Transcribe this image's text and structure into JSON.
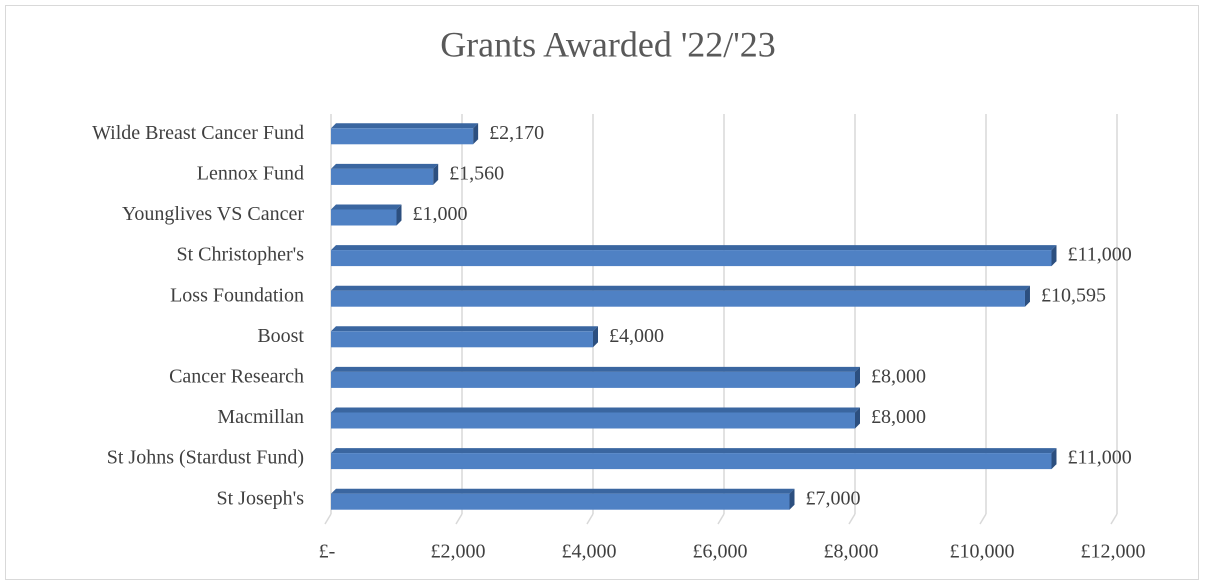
{
  "chart_data": {
    "type": "bar",
    "orientation": "horizontal",
    "title": "Grants Awarded '22/'23",
    "categories": [
      "Wilde Breast Cancer Fund",
      "Lennox Fund",
      "Younglives VS Cancer",
      "St Christopher's",
      "Loss Foundation",
      "Boost",
      "Cancer Research",
      "Macmillan",
      "St Johns (Stardust Fund)",
      "St Joseph's"
    ],
    "values": [
      2170,
      1560,
      1000,
      11000,
      10595,
      4000,
      8000,
      8000,
      11000,
      7000
    ],
    "value_labels": [
      "£2,170",
      "£1,560",
      "£1,000",
      "£11,000",
      "£10,595",
      "£4,000",
      "£8,000",
      "£8,000",
      "£11,000",
      "£7,000"
    ],
    "color": "#4f81c4",
    "xlim": [
      0,
      12000
    ],
    "xticks": [
      {
        "value": 0,
        "label": "£-"
      },
      {
        "value": 2000,
        "label": "£2,000"
      },
      {
        "value": 4000,
        "label": "£4,000"
      },
      {
        "value": 6000,
        "label": "£6,000"
      },
      {
        "value": 8000,
        "label": "£8,000"
      },
      {
        "value": 10000,
        "label": "£10,000"
      },
      {
        "value": 12000,
        "label": "£12,000"
      }
    ],
    "grid": true
  }
}
